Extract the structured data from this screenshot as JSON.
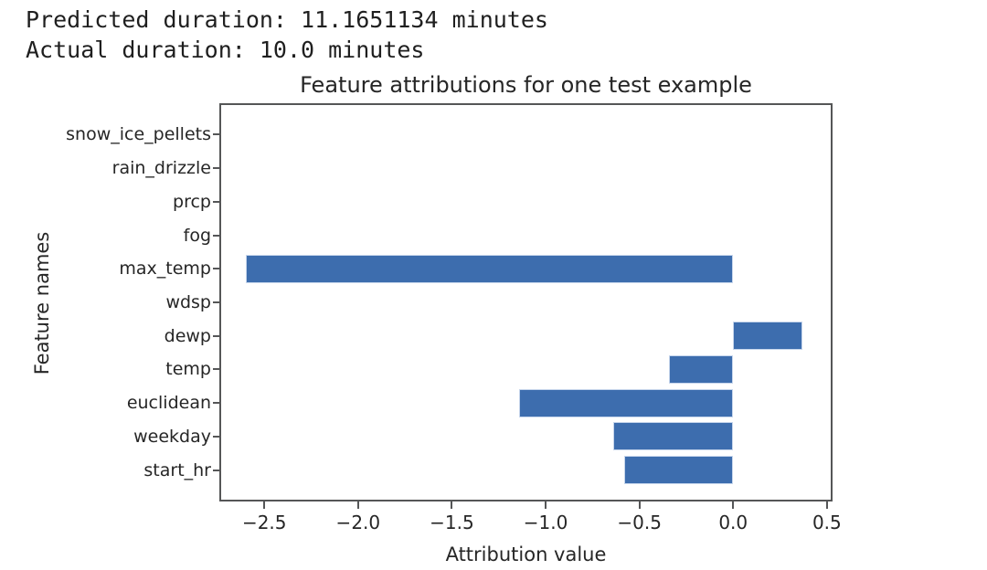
{
  "header": {
    "line1": "Predicted duration: 11.1651134 minutes",
    "line2": "Actual duration: 10.0 minutes"
  },
  "chart_data": {
    "type": "bar",
    "orientation": "horizontal",
    "title": "Feature attributions for one test example",
    "xlabel": "Attribution value",
    "ylabel": "Feature names",
    "categories_top_to_bottom": [
      "snow_ice_pellets",
      "rain_drizzle",
      "prcp",
      "fog",
      "max_temp",
      "wdsp",
      "dewp",
      "temp",
      "euclidean",
      "weekday",
      "start_hr"
    ],
    "values": [
      0,
      0,
      0,
      0,
      -2.6,
      0,
      0.37,
      -0.34,
      -1.14,
      -0.64,
      -0.58
    ],
    "xlim": [
      -2.74,
      0.53
    ],
    "xticks": [
      -2.5,
      -2.0,
      -1.5,
      -1.0,
      -0.5,
      0.0,
      0.5
    ],
    "xtick_labels": [
      "−2.5",
      "−2.0",
      "−1.5",
      "−1.0",
      "−0.5",
      "0.0",
      "0.5"
    ],
    "grid": false,
    "legend": "none",
    "bar_color": "#3d6dae",
    "bar_edge_color": "#c7d6ec",
    "spine_color": "#555657",
    "text_color": "#262626"
  }
}
